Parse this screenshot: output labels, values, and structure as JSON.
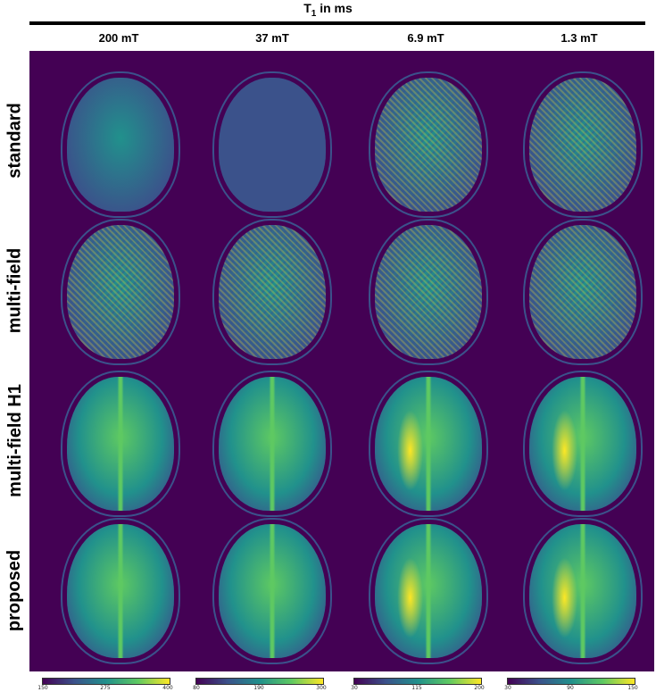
{
  "figure": {
    "title_main": "T",
    "title_sub": "1",
    "title_suffix": " in ms"
  },
  "columns": [
    "200 mT",
    "37 mT",
    "6.9 mT",
    "1.3 mT"
  ],
  "rows": [
    "standard",
    "multi-field",
    "multi-field H1",
    "proposed"
  ],
  "colorbars": [
    {
      "min": "150",
      "mid": "275",
      "max": "400"
    },
    {
      "min": "80",
      "mid": "190",
      "max": "300"
    },
    {
      "min": "30",
      "mid": "115",
      "max": "200"
    },
    {
      "min": "30",
      "mid": "90",
      "max": "150"
    }
  ],
  "colors": {
    "background": "#440154",
    "low": "#3b528b",
    "mid": "#21918c",
    "high": "#5ec962",
    "max": "#fde725"
  }
}
